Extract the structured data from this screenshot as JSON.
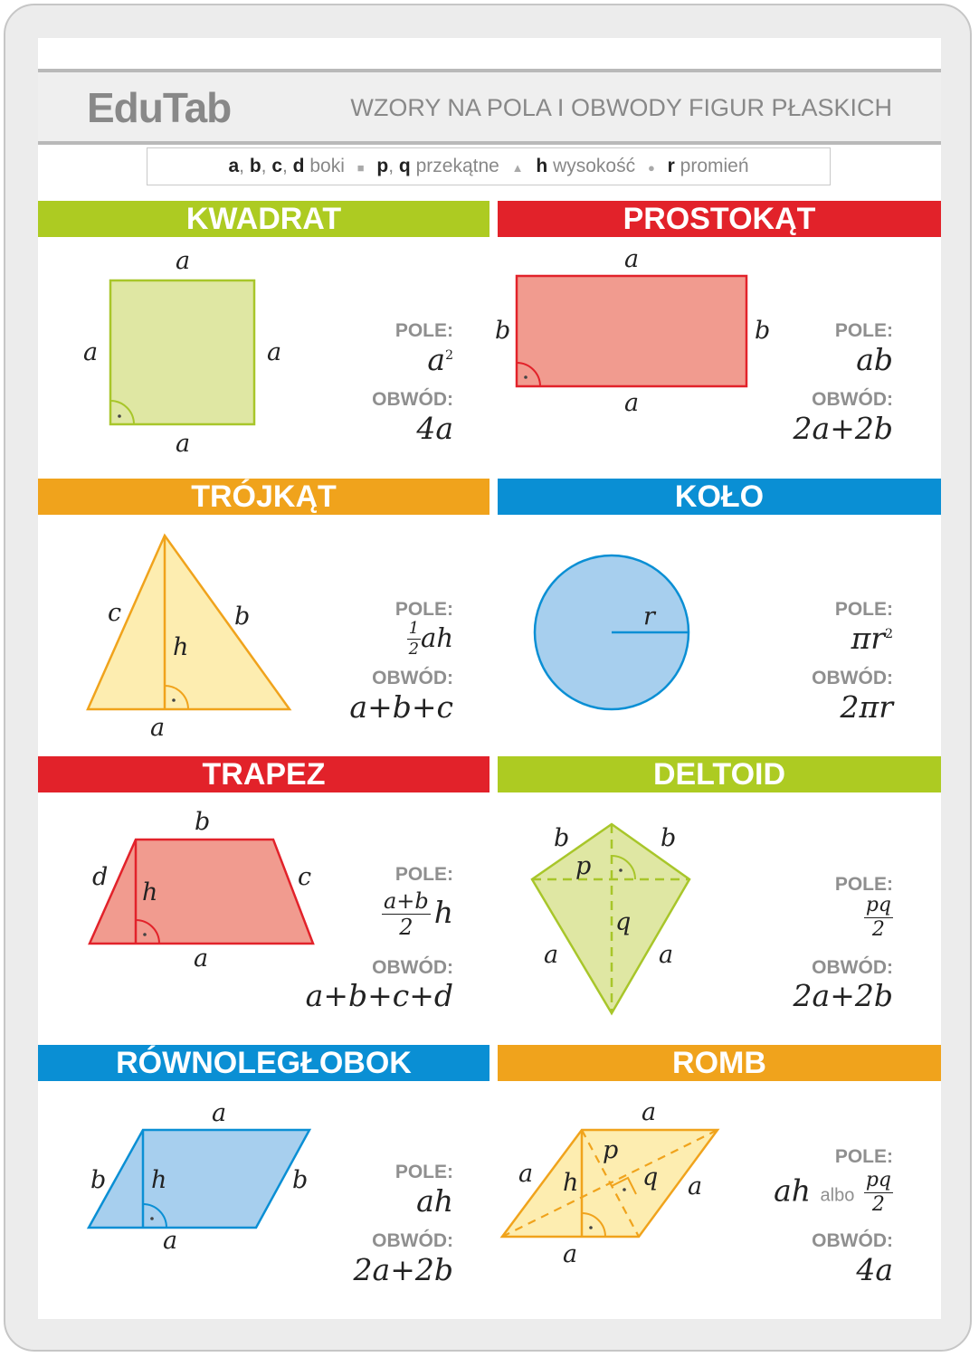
{
  "header": {
    "logo": "EduTab",
    "title": "WZORY NA POLA I OBWODY FIGUR PŁASKICH"
  },
  "legend": [
    {
      "symbols": [
        "a",
        "b",
        "c",
        "d"
      ],
      "text": "boki",
      "marker": "square"
    },
    {
      "symbols": [
        "p",
        "q"
      ],
      "text": "przekątne",
      "marker": "triangle"
    },
    {
      "symbols": [
        "h"
      ],
      "text": "wysokość",
      "marker": "circle"
    },
    {
      "symbols": [
        "r"
      ],
      "text": "promień",
      "marker": ""
    }
  ],
  "labels": {
    "pole": "POLE:",
    "obwod": "OBWÓD:"
  },
  "colors": {
    "green": "#adcb22",
    "red": "#e2222a",
    "orange": "#f0a31c",
    "blue": "#0a8fd4"
  },
  "shapes": {
    "kwadrat": {
      "name": "KWADRAT",
      "color": "green",
      "side": "a",
      "pole_base": "a",
      "pole_exp": "2",
      "obwod": "4a"
    },
    "prostokat": {
      "name": "PROSTOKĄT",
      "color": "red",
      "side_a": "a",
      "side_b": "b",
      "pole": "ab",
      "obwod": "2a+2b"
    },
    "trojkat": {
      "name": "TRÓJKĄT",
      "color": "orange",
      "side_a": "a",
      "side_b": "b",
      "side_c": "c",
      "height": "h",
      "pole_num": "1",
      "pole_den": "2",
      "pole_rest": "ah",
      "obwod": "a+b+c"
    },
    "kolo": {
      "name": "KOŁO",
      "color": "blue",
      "radius": "r",
      "pole_base": "πr",
      "pole_exp": "2",
      "obwod": "2πr"
    },
    "trapez": {
      "name": "TRAPEZ",
      "color": "red",
      "side_a": "a",
      "side_b": "b",
      "side_c": "c",
      "side_d": "d",
      "height": "h",
      "pole_num": "a+b",
      "pole_den": "2",
      "pole_rest": "h",
      "obwod": "a+b+c+d"
    },
    "deltoid": {
      "name": "DELTOID",
      "color": "green",
      "side_a": "a",
      "side_b": "b",
      "diag_p": "p",
      "diag_q": "q",
      "pole_num": "pq",
      "pole_den": "2",
      "obwod": "2a+2b"
    },
    "rownoleglobok": {
      "name": "RÓWNOLEGŁOBOK",
      "color": "blue",
      "side_a": "a",
      "side_b": "b",
      "height": "h",
      "pole": "ah",
      "obwod": "2a+2b"
    },
    "romb": {
      "name": "ROMB",
      "color": "orange",
      "side_a": "a",
      "diag_p": "p",
      "diag_q": "q",
      "height": "h",
      "pole_a": "ah",
      "pole_or": "albo",
      "pole_num": "pq",
      "pole_den": "2",
      "obwod": "4a"
    }
  }
}
